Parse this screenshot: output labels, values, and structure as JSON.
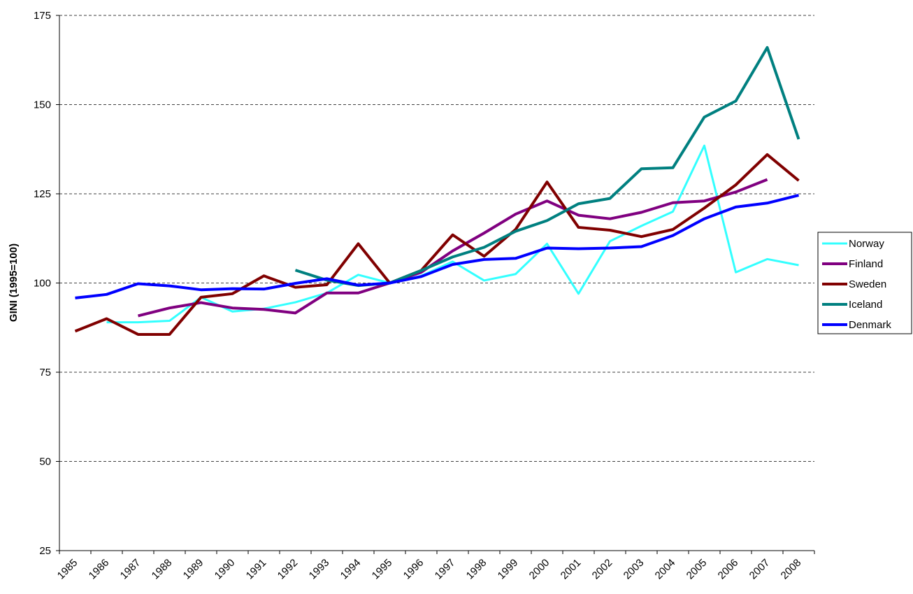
{
  "chart_data": {
    "type": "line",
    "y_label": "GINI (1995=100)",
    "categories": [
      "1985",
      "1986",
      "1987",
      "1988",
      "1989",
      "1990",
      "1991",
      "1992",
      "1993",
      "1994",
      "1995",
      "1996",
      "1997",
      "1998",
      "1999",
      "2000",
      "2001",
      "2002",
      "2003",
      "2004",
      "2005",
      "2006",
      "2007",
      "2008"
    ],
    "ylim": [
      25,
      175
    ],
    "yticks": [
      25,
      50,
      75,
      100,
      125,
      150,
      175
    ],
    "grid": true,
    "legend": "right",
    "series": [
      {
        "name": "Norway",
        "color": "#33ffff",
        "values": [
          null,
          89,
          89,
          89.4,
          96,
          92,
          92.8,
          94.6,
          97.2,
          102.3,
          100,
          102,
          106,
          100.7,
          102.5,
          111,
          97,
          111.7,
          116,
          120,
          138.5,
          103,
          106.7,
          105
        ]
      },
      {
        "name": "Finland",
        "color": "#800080",
        "values": [
          null,
          null,
          90.8,
          93,
          94.5,
          93,
          92.6,
          91.6,
          97.2,
          97.2,
          100,
          103,
          109,
          114,
          119.3,
          123,
          119,
          118,
          119.8,
          122.5,
          123,
          125.5,
          129,
          null
        ]
      },
      {
        "name": "Sweden",
        "color": "#800000",
        "values": [
          86.5,
          90,
          85.6,
          85.6,
          96,
          97,
          102,
          98.8,
          99.5,
          111,
          100,
          103.5,
          113.5,
          107.5,
          115,
          128.3,
          115.6,
          114.8,
          113,
          115,
          121,
          127.5,
          136,
          128.7
        ]
      },
      {
        "name": "Iceland",
        "color": "#008080",
        "values": [
          null,
          null,
          null,
          null,
          null,
          null,
          null,
          103.6,
          100.8,
          99.3,
          100,
          103.5,
          107.3,
          110,
          114.5,
          117.5,
          122.2,
          123.7,
          132,
          132.3,
          146.5,
          151,
          166,
          140.3
        ]
      },
      {
        "name": "Denmark",
        "color": "#0000ff",
        "values": [
          95.8,
          96.8,
          99.8,
          99.2,
          98.1,
          98.4,
          98.3,
          99.9,
          101.2,
          99.4,
          100,
          101.8,
          105.2,
          106.6,
          106.9,
          109.8,
          109.6,
          109.8,
          110.2,
          113.3,
          118,
          121.3,
          122.4,
          124.6
        ]
      }
    ]
  }
}
